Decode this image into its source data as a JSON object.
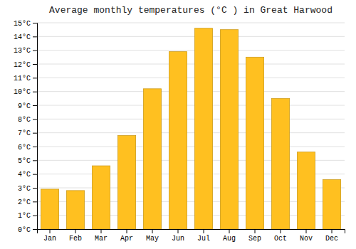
{
  "chart_data": {
    "type": "bar",
    "title": "Average monthly temperatures (°C ) in Great Harwood",
    "categories": [
      "Jan",
      "Feb",
      "Mar",
      "Apr",
      "May",
      "Jun",
      "Jul",
      "Aug",
      "Sep",
      "Oct",
      "Nov",
      "Dec"
    ],
    "values": [
      2.9,
      2.8,
      4.6,
      6.8,
      10.2,
      12.9,
      14.6,
      14.5,
      12.5,
      9.5,
      5.6,
      3.6
    ],
    "color": "#FFC020",
    "ylim": [
      0,
      15
    ],
    "yticks": [
      {
        "value": 0,
        "label": "0°C"
      },
      {
        "value": 1,
        "label": "1°C"
      },
      {
        "value": 2,
        "label": "2°C"
      },
      {
        "value": 3,
        "label": "3°C"
      },
      {
        "value": 4,
        "label": "4°C"
      },
      {
        "value": 5,
        "label": "5°C"
      },
      {
        "value": 6,
        "label": "6°C"
      },
      {
        "value": 7,
        "label": "7°C"
      },
      {
        "value": 8,
        "label": "8°C"
      },
      {
        "value": 9,
        "label": "9°C"
      },
      {
        "value": 10,
        "label": "10°C"
      },
      {
        "value": 11,
        "label": "11°C"
      },
      {
        "value": 12,
        "label": "12°C"
      },
      {
        "value": 13,
        "label": "13°C"
      },
      {
        "value": 14,
        "label": "14°C"
      },
      {
        "value": 15,
        "label": "15°C"
      }
    ],
    "grid": true
  }
}
